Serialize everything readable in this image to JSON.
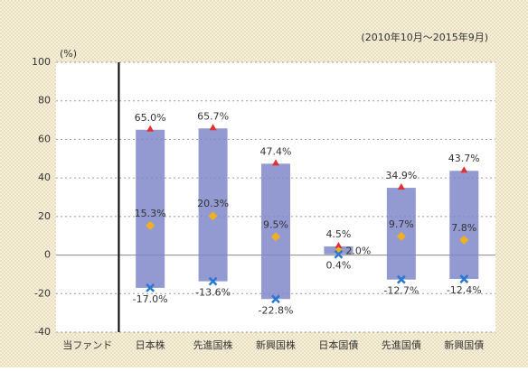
{
  "chart_data": {
    "type": "range",
    "subtitle": "(2010年10月～2015年9月)",
    "y_label": "(%)",
    "categories": [
      "当ファンド",
      "日本株",
      "先進国株",
      "新興国株",
      "日本国債",
      "先進国債",
      "新興国債"
    ],
    "bar_color": "#7f88c9",
    "series": [
      {
        "color": "#e03030",
        "values": [
          null,
          65.0,
          65.7,
          47.4,
          4.5,
          34.9,
          43.7
        ],
        "value_labels": [
          null,
          "65.0%",
          "65.7%",
          "47.4%",
          "4.5%",
          "34.9%",
          "43.7%"
        ]
      },
      {
        "color": "#f0b020",
        "values": [
          null,
          15.3,
          20.3,
          9.5,
          2.0,
          9.7,
          7.8
        ],
        "value_labels": [
          null,
          "15.3%",
          "20.3%",
          "9.5%",
          "2.0%",
          "9.7%",
          "7.8%"
        ]
      },
      {
        "color": "#2a78d0",
        "values": [
          null,
          -17.0,
          -13.6,
          -22.8,
          0.4,
          -12.7,
          -12.4
        ],
        "value_labels": [
          null,
          "-17.0%",
          "-13.6%",
          "-22.8%",
          "0.4%",
          "-12.7%",
          "-12.4%"
        ]
      }
    ],
    "ylim": [
      -40,
      100
    ],
    "yticks": [
      -40,
      -20,
      0,
      20,
      40,
      60,
      80,
      100
    ],
    "grid": true
  }
}
